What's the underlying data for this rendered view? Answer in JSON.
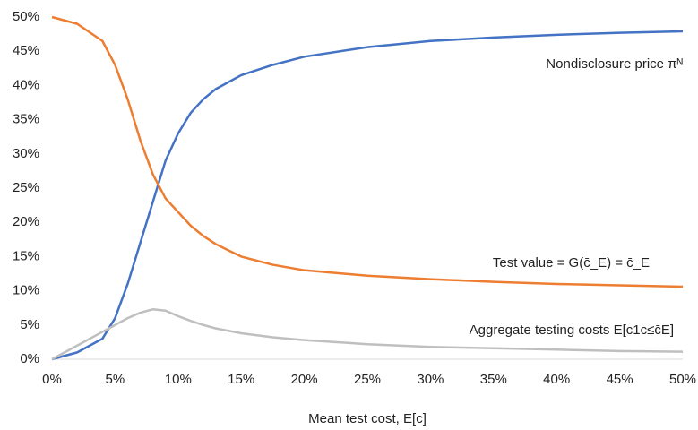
{
  "chart_data": {
    "type": "line",
    "x_label": "Mean test cost, E[c]",
    "x": [
      0,
      2,
      4,
      5,
      6,
      7,
      8,
      9,
      10,
      11,
      12,
      13,
      15,
      17.5,
      20,
      25,
      30,
      35,
      40,
      45,
      50
    ],
    "series": [
      {
        "name": "Nondisclosure price πᴺ",
        "color": "#4472c4",
        "values": [
          0,
          1,
          3,
          6,
          11,
          17,
          23,
          29,
          33,
          36,
          38,
          39.5,
          41.5,
          43,
          44.2,
          45.6,
          46.5,
          47,
          47.4,
          47.7,
          47.9
        ]
      },
      {
        "name": "Test value = G(c̄_E) = c̄_E",
        "color": "#ed7d31",
        "values": [
          50,
          49,
          46.5,
          43,
          38,
          32,
          27,
          23.5,
          21.5,
          19.5,
          18,
          16.8,
          15,
          13.8,
          13,
          12.2,
          11.7,
          11.3,
          11,
          10.8,
          10.6
        ]
      },
      {
        "name": "Aggregate testing costs E[c1c≤c̄E]",
        "color": "#bfbfbf",
        "values": [
          0,
          2,
          4,
          5,
          6,
          6.8,
          7.3,
          7.1,
          6.3,
          5.6,
          5,
          4.5,
          3.8,
          3.2,
          2.8,
          2.2,
          1.8,
          1.6,
          1.4,
          1.2,
          1.1
        ]
      }
    ],
    "xlim": [
      0,
      50
    ],
    "ylim": [
      0,
      50
    ],
    "xticks": [
      {
        "value": 0,
        "label": "0%"
      },
      {
        "value": 5,
        "label": "5%"
      },
      {
        "value": 10,
        "label": "10%"
      },
      {
        "value": 15,
        "label": "15%"
      },
      {
        "value": 20,
        "label": "20%"
      },
      {
        "value": 25,
        "label": "25%"
      },
      {
        "value": 30,
        "label": "30%"
      },
      {
        "value": 35,
        "label": "35%"
      },
      {
        "value": 40,
        "label": "40%"
      },
      {
        "value": 45,
        "label": "45%"
      },
      {
        "value": 50,
        "label": "50%"
      }
    ],
    "yticks": [
      {
        "value": 0,
        "label": "0%"
      },
      {
        "value": 5,
        "label": "5%"
      },
      {
        "value": 10,
        "label": "10%"
      },
      {
        "value": 15,
        "label": "15%"
      },
      {
        "value": 20,
        "label": "20%"
      },
      {
        "value": 25,
        "label": "25%"
      },
      {
        "value": 30,
        "label": "30%"
      },
      {
        "value": 35,
        "label": "35%"
      },
      {
        "value": 40,
        "label": "40%"
      },
      {
        "value": 45,
        "label": "45%"
      },
      {
        "value": 50,
        "label": "50%"
      }
    ],
    "grid": false,
    "legend": "inline"
  }
}
